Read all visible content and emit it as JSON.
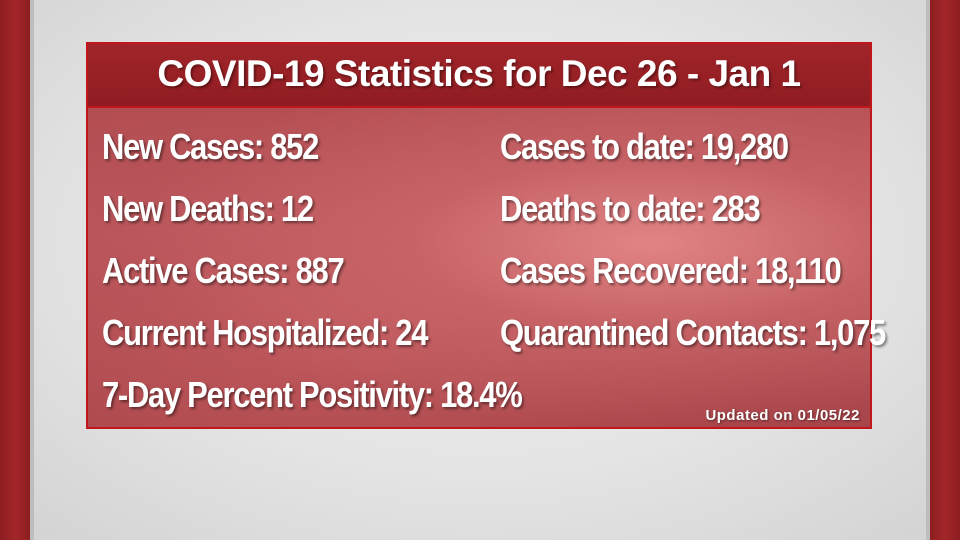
{
  "title": "COVID-19 Statistics for Dec 26 - Jan 1",
  "stats_left": [
    "New Cases: 852",
    "New Deaths: 12",
    "Active Cases: 887",
    "Current Hospitalized: 24",
    "7-Day Percent Positivity: 18.4%"
  ],
  "stats_right": [
    "Cases to date: 19,280",
    "Deaths to date: 283",
    "Cases Recovered: 18,110",
    "Quarantined Contacts: 1,075"
  ],
  "updated": "Updated on 01/05/22",
  "colors": {
    "accent_red": "#8f1c21",
    "border_red": "#c0161c",
    "panel_red": "#b24a4e",
    "text": "#ffffff"
  }
}
